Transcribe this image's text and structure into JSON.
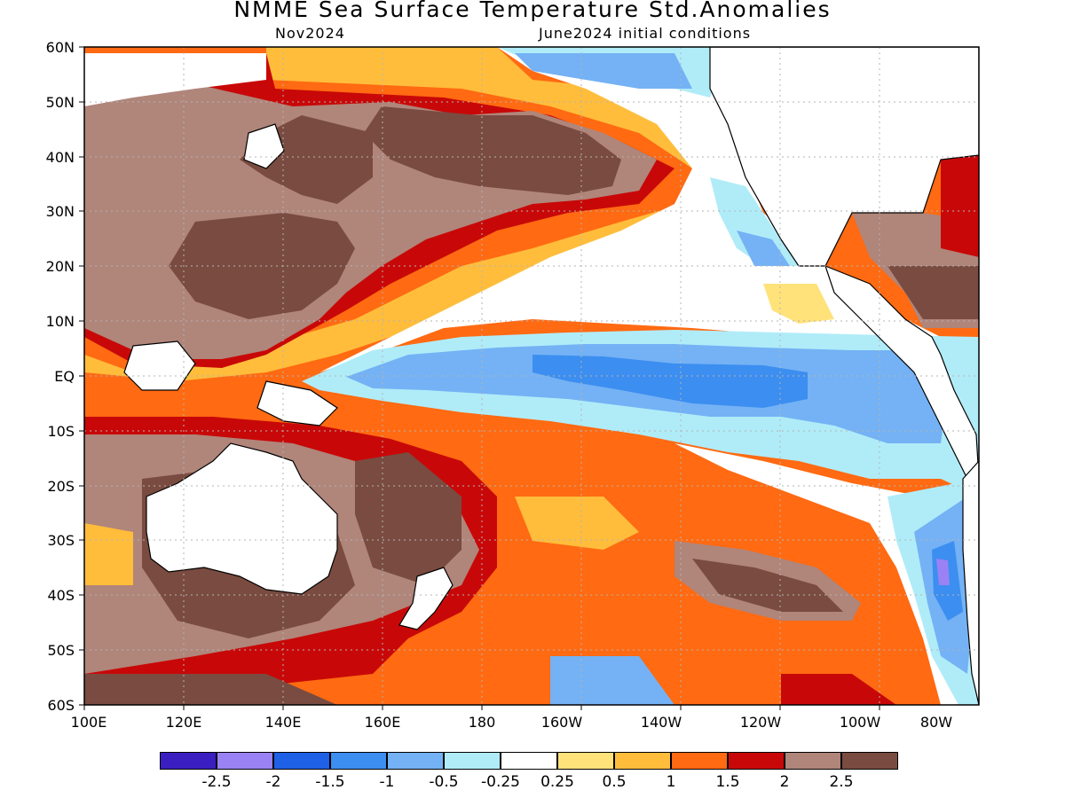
{
  "title": "NMME Sea Surface Temperature Std.Anomalies",
  "valid_month": "Nov2024",
  "initial_conditions": "June2024 initial conditions",
  "lat_labels": [
    "60N",
    "50N",
    "40N",
    "30N",
    "20N",
    "10N",
    "EQ",
    "10S",
    "20S",
    "30S",
    "40S",
    "50S",
    "60S"
  ],
  "lon_labels": [
    "100E",
    "120E",
    "140E",
    "160E",
    "180",
    "160W",
    "140W",
    "120W",
    "100W",
    "80W"
  ],
  "colorbar": {
    "colors": [
      "#3b1ec0",
      "#9a82f5",
      "#1e60e6",
      "#3c8ef0",
      "#74b2f5",
      "#b0ecf8",
      "#ffffff",
      "#ffe27a",
      "#ffbd3b",
      "#ff6a12",
      "#c80808",
      "#b0857a",
      "#7a4b40"
    ],
    "labels": [
      "-2.5",
      "-2",
      "-1.5",
      "-1",
      "-0.5",
      "-0.25",
      "0.25",
      "0.5",
      "1",
      "1.5",
      "2",
      "2.5"
    ]
  },
  "legend_colors": {
    "land": "#ffffff",
    "coast": "#000000",
    "grid": "#b4b4b4"
  }
}
